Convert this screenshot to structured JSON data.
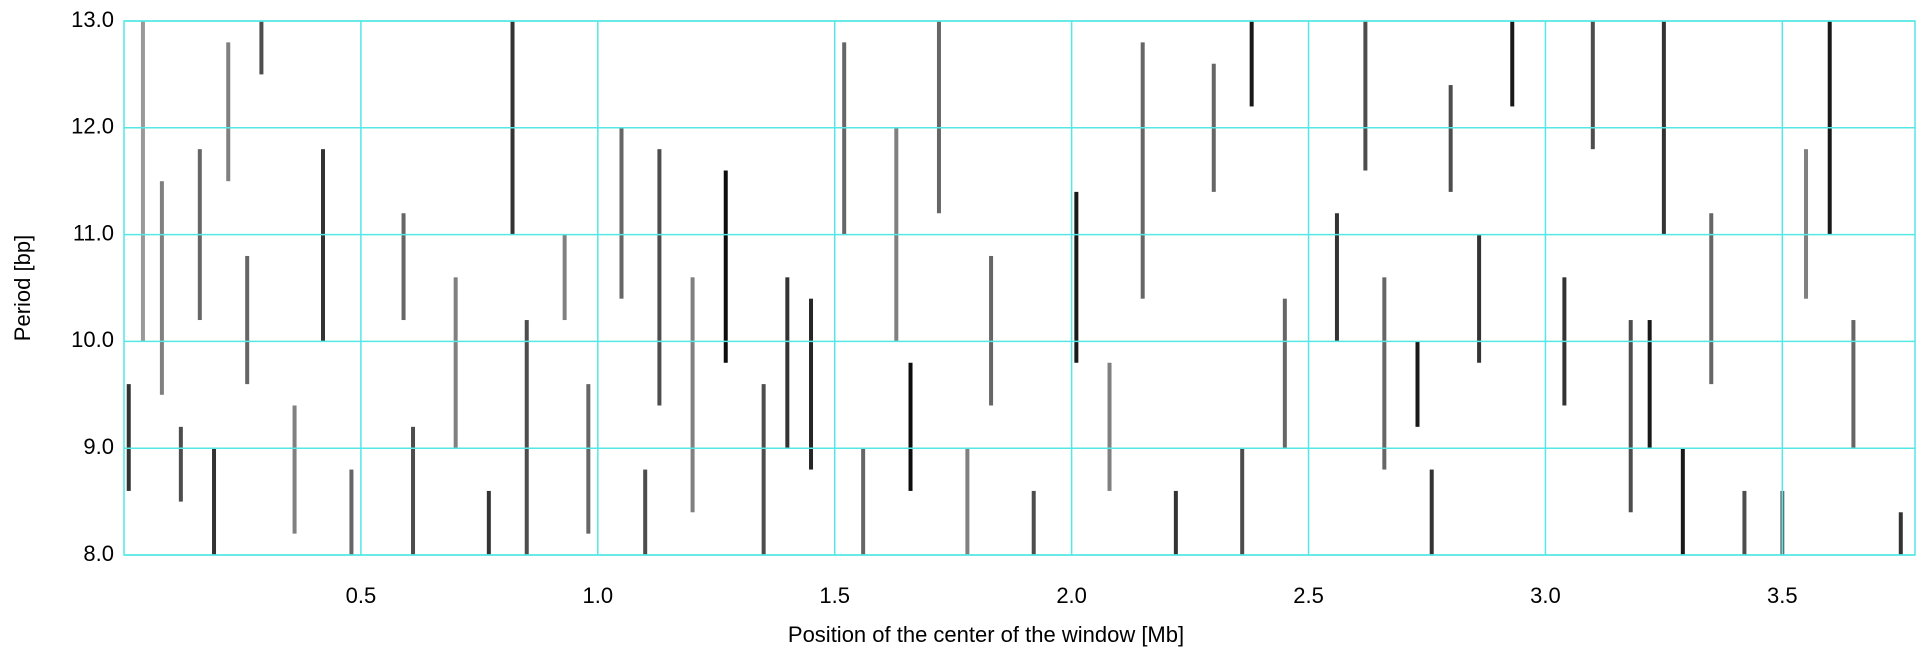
{
  "chart_data": {
    "type": "heatmap",
    "xlabel": "Position of the center of the window [Mb]",
    "ylabel": "Period [bp]",
    "xlim": [
      0,
      3.78
    ],
    "ylim": [
      8,
      13
    ],
    "xticks": [
      0.5,
      {
        "value": 1,
        "label": "1.0"
      },
      1.5,
      {
        "value": 2,
        "label": "2.0"
      },
      2.5,
      {
        "value": 3,
        "label": "3.0"
      },
      3.5
    ],
    "yticks": [
      {
        "value": 8,
        "label": "8.0"
      },
      {
        "value": 9,
        "label": "9.0"
      },
      {
        "value": 10,
        "label": "10.0"
      },
      {
        "value": 11,
        "label": "11.0"
      },
      {
        "value": 12,
        "label": "12.0"
      },
      {
        "value": 13,
        "label": "13.0"
      }
    ],
    "grid": true,
    "grid_color": "#55e6e6",
    "streaks": {
      "x": [
        0.01,
        0.04,
        0.08,
        0.12,
        0.16,
        0.19,
        0.22,
        0.26,
        0.29,
        0.36,
        0.42,
        0.48,
        0.59,
        0.61,
        0.7,
        0.77,
        0.82,
        0.85,
        0.93,
        0.98,
        1.05,
        1.1,
        1.13,
        1.2,
        1.27,
        1.35,
        1.4,
        1.45,
        1.52,
        1.56,
        1.63,
        1.66,
        1.72,
        1.78,
        1.83,
        1.92,
        2.01,
        2.08,
        2.15,
        2.22,
        2.3,
        2.36,
        2.38,
        2.45,
        2.56,
        2.62,
        2.66,
        2.73,
        2.76,
        2.8,
        2.86,
        2.93,
        3.04,
        3.1,
        3.18,
        3.22,
        3.25,
        3.29,
        3.35,
        3.42,
        3.5,
        3.55,
        3.6,
        3.65,
        3.75
      ],
      "ymin": [
        8.6,
        10.0,
        9.5,
        8.5,
        10.2,
        8.0,
        11.5,
        9.6,
        12.5,
        8.2,
        10.0,
        8.0,
        10.2,
        8.0,
        9.0,
        8.0,
        11.0,
        8.0,
        10.2,
        8.2,
        10.4,
        8.0,
        9.4,
        8.4,
        9.8,
        8.0,
        9.0,
        8.8,
        11.0,
        8.0,
        10.0,
        8.6,
        11.2,
        8.0,
        9.4,
        8.0,
        9.8,
        8.6,
        10.4,
        8.0,
        11.4,
        8.0,
        12.2,
        9.0,
        10.0,
        11.6,
        8.8,
        9.2,
        8.0,
        11.4,
        9.8,
        12.2,
        9.4,
        11.8,
        8.4,
        9.0,
        11.0,
        8.0,
        9.6,
        8.0,
        8.0,
        10.4,
        11.0,
        9.0,
        8.0
      ],
      "ymax": [
        9.6,
        13.0,
        11.5,
        9.2,
        11.8,
        9.0,
        12.8,
        10.8,
        13.0,
        9.4,
        11.8,
        8.8,
        11.2,
        9.2,
        10.6,
        8.6,
        13.0,
        10.2,
        11.0,
        9.6,
        12.0,
        8.8,
        11.8,
        10.6,
        11.6,
        9.6,
        10.6,
        10.4,
        12.8,
        9.0,
        12.0,
        9.8,
        13.0,
        9.0,
        10.8,
        8.6,
        11.4,
        9.8,
        12.8,
        8.6,
        12.6,
        9.0,
        13.0,
        10.4,
        11.2,
        13.0,
        10.6,
        10.0,
        8.8,
        12.4,
        11.0,
        13.0,
        10.6,
        13.0,
        10.2,
        10.2,
        13.0,
        9.0,
        11.2,
        8.6,
        8.6,
        11.8,
        13.0,
        10.2,
        8.4
      ],
      "intensity": [
        0.8,
        0.4,
        0.5,
        0.7,
        0.6,
        0.8,
        0.5,
        0.6,
        0.7,
        0.5,
        0.8,
        0.6,
        0.6,
        0.7,
        0.5,
        0.8,
        0.8,
        0.7,
        0.5,
        0.6,
        0.6,
        0.7,
        0.7,
        0.5,
        0.95,
        0.7,
        0.8,
        0.85,
        0.6,
        0.6,
        0.5,
        0.95,
        0.6,
        0.5,
        0.6,
        0.7,
        0.9,
        0.5,
        0.6,
        0.8,
        0.6,
        0.7,
        0.9,
        0.6,
        0.8,
        0.7,
        0.6,
        0.9,
        0.8,
        0.7,
        0.8,
        0.9,
        0.8,
        0.7,
        0.7,
        0.9,
        0.8,
        0.9,
        0.6,
        0.7,
        0.6,
        0.5,
        0.9,
        0.6,
        0.8
      ]
    }
  }
}
